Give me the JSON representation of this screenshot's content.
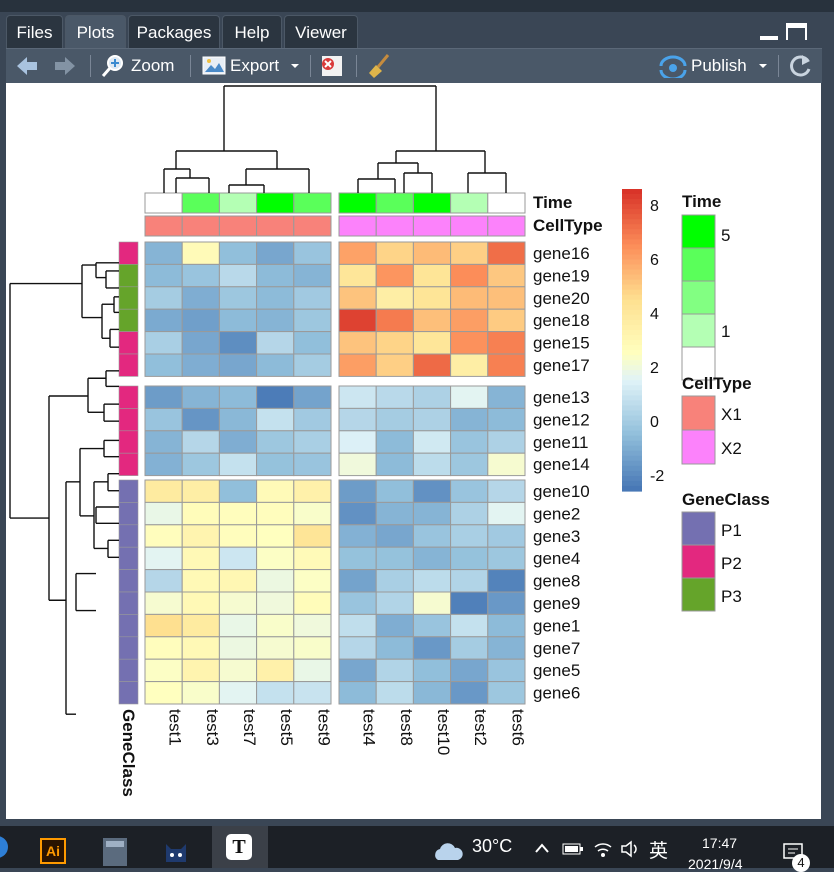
{
  "tabs": [
    {
      "label": "Files",
      "active": false
    },
    {
      "label": "Plots",
      "active": true
    },
    {
      "label": "Packages",
      "active": false
    },
    {
      "label": "Help",
      "active": false
    },
    {
      "label": "Viewer",
      "active": false
    }
  ],
  "toolbar": {
    "zoom_label": "Zoom",
    "export_label": "Export",
    "publish_label": "Publish"
  },
  "heatmap": {
    "annotation_labels": {
      "time": "Time",
      "celltype": "CellType",
      "geneclass": "GeneClass"
    },
    "columns": [
      "test1",
      "test3",
      "test7",
      "test5",
      "test9",
      "test4",
      "test8",
      "test10",
      "test2",
      "test6"
    ],
    "column_groups": [
      5,
      5
    ],
    "time": [
      1,
      4,
      2,
      5,
      4,
      5,
      4,
      5,
      2,
      1
    ],
    "celltype": [
      "X1",
      "X1",
      "X1",
      "X1",
      "X1",
      "X2",
      "X2",
      "X2",
      "X2",
      "X2"
    ],
    "row_groups": [
      {
        "genes": [
          "gene16",
          "gene19",
          "gene20",
          "gene18",
          "gene15",
          "gene17"
        ],
        "classes": [
          "P2",
          "P3",
          "P3",
          "P3",
          "P2",
          "P2"
        ],
        "values": [
          [
            -0.8,
            2.8,
            -0.5,
            -1.2,
            -0.3,
            6.0,
            4.8,
            5.4,
            4.9,
            7.2
          ],
          [
            -0.6,
            -0.3,
            0.5,
            -0.6,
            -0.8,
            4.1,
            6.3,
            4.2,
            6.5,
            5.1
          ],
          [
            0.0,
            -1.0,
            -0.2,
            -0.6,
            -0.1,
            5.2,
            3.6,
            4.2,
            5.4,
            5.3
          ],
          [
            -1.1,
            -1.4,
            -0.6,
            -0.8,
            -0.2,
            8.2,
            6.9,
            5.3,
            6.1,
            5.0
          ],
          [
            0.1,
            -1.2,
            -1.9,
            0.4,
            -0.5,
            5.2,
            4.8,
            4.1,
            6.4,
            6.8
          ],
          [
            -0.5,
            -1.0,
            -1.2,
            -0.6,
            0.0,
            6.1,
            4.9,
            7.3,
            3.6,
            6.8
          ]
        ]
      },
      {
        "genes": [
          "gene13",
          "gene12",
          "gene11",
          "gene14"
        ],
        "classes": [
          "P2",
          "P2",
          "P2",
          "P2"
        ],
        "values": [
          [
            -1.5,
            -0.8,
            -0.6,
            -2.4,
            -1.3,
            1.0,
            0.5,
            0.2,
            1.6,
            -0.8
          ],
          [
            -0.3,
            -1.7,
            -0.7,
            0.8,
            -0.1,
            0.4,
            0.0,
            0.2,
            -0.8,
            -0.6
          ],
          [
            -0.8,
            0.4,
            -1.0,
            -0.2,
            0.1,
            1.4,
            -0.6,
            1.1,
            -0.3,
            0.2
          ],
          [
            -0.9,
            -0.2,
            0.8,
            -0.4,
            -0.3,
            2.0,
            -0.6,
            0.6,
            -0.2,
            2.2
          ]
        ]
      },
      {
        "genes": [
          "gene10",
          "gene2",
          "gene3",
          "gene4",
          "gene8",
          "gene9",
          "gene1",
          "gene7",
          "gene5",
          "gene6"
        ],
        "classes": [
          "P1",
          "P1",
          "P1",
          "P1",
          "P1",
          "P1",
          "P1",
          "P1",
          "P1",
          "P1"
        ],
        "values": [
          [
            3.8,
            3.6,
            -0.5,
            2.8,
            3.4,
            -1.5,
            -0.5,
            -1.8,
            -0.3,
            0.4
          ],
          [
            1.8,
            2.7,
            2.6,
            2.6,
            2.3,
            -1.8,
            -0.8,
            -0.8,
            0.2,
            1.6
          ],
          [
            2.6,
            3.2,
            2.6,
            2.5,
            4.2,
            -0.9,
            -1.2,
            -0.3,
            0.1,
            -0.1
          ],
          [
            1.6,
            2.9,
            1.0,
            2.4,
            2.8,
            -0.4,
            -0.4,
            -0.8,
            -0.4,
            -0.2
          ],
          [
            0.4,
            2.9,
            3.0,
            1.9,
            2.4,
            -1.3,
            0.1,
            0.6,
            0.3,
            -2.2
          ],
          [
            2.2,
            2.9,
            2.2,
            2.0,
            2.7,
            -0.3,
            0.3,
            2.2,
            -2.3,
            -1.6
          ],
          [
            4.5,
            3.8,
            1.8,
            2.3,
            2.0,
            0.7,
            -1.0,
            -0.3,
            0.8,
            -0.6
          ],
          [
            2.6,
            2.9,
            1.9,
            2.2,
            2.3,
            0.4,
            -0.6,
            -1.6,
            0.0,
            -0.8
          ],
          [
            2.4,
            3.2,
            2.2,
            3.4,
            1.8,
            -1.2,
            0.3,
            -0.5,
            -1.2,
            -0.3
          ],
          [
            2.5,
            2.3,
            1.6,
            0.8,
            0.9,
            -0.6,
            0.6,
            -0.7,
            -1.6,
            -0.2
          ]
        ]
      }
    ],
    "colorbar": {
      "min": -2.6,
      "max": 8.6,
      "ticks": [
        8,
        6,
        4,
        2,
        0,
        -2
      ]
    },
    "legend": {
      "time": {
        "title": "Time",
        "labels": [
          "5",
          "1"
        ]
      },
      "celltype": {
        "title": "CellType",
        "items": [
          {
            "label": "X1",
            "color": "#F8827A"
          },
          {
            "label": "X2",
            "color": "#FC82FB"
          }
        ]
      },
      "geneclass": {
        "title": "GeneClass",
        "items": [
          {
            "label": "P1",
            "color": "#7470B1"
          },
          {
            "label": "P2",
            "color": "#E3287F"
          },
          {
            "label": "P3",
            "color": "#65A42A"
          }
        ]
      }
    }
  },
  "taskbar": {
    "temperature": "30°C",
    "ime": "英",
    "time": "17:47",
    "date": "2021/9/4",
    "notif_count": "4"
  }
}
